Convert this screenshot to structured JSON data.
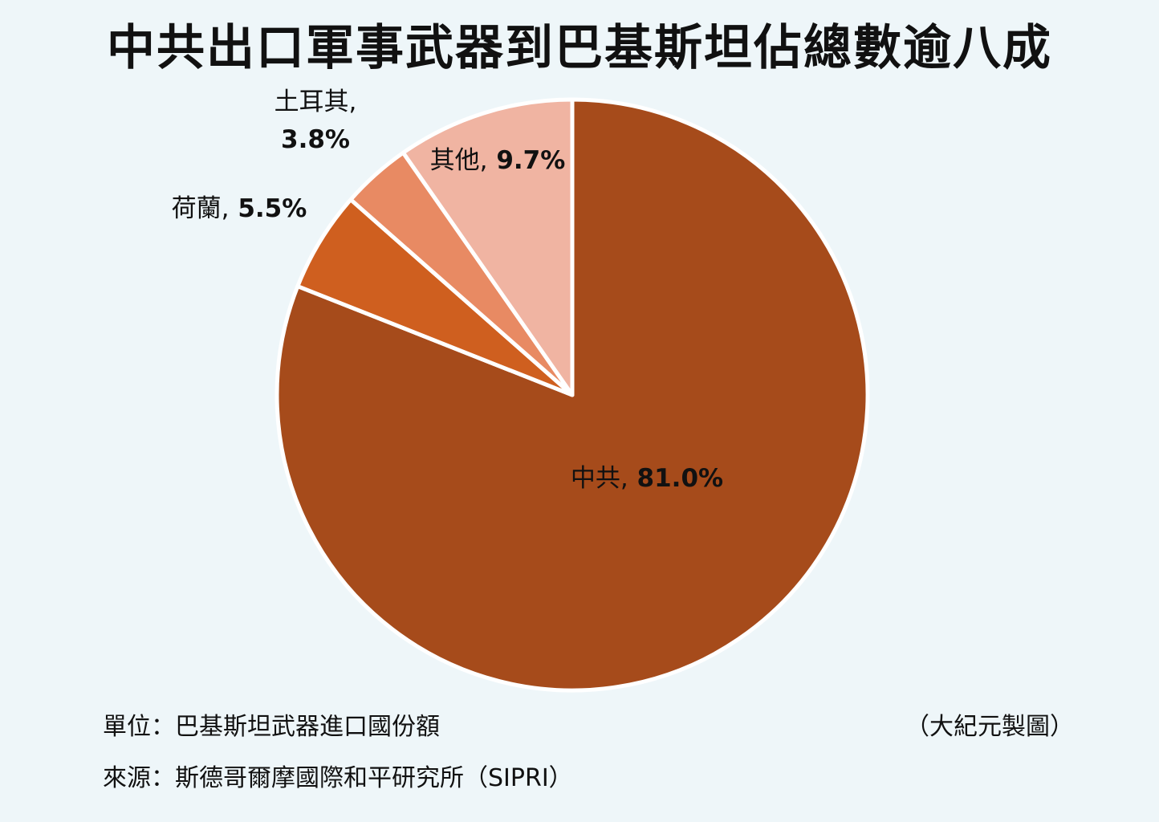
{
  "chart_data": {
    "type": "pie",
    "title": "中共出口軍事武器到巴基斯坦佔總數逾八成",
    "slices": [
      {
        "label": "中共",
        "value": 81.0,
        "value_text": "81.0%",
        "color": "#a64b1b"
      },
      {
        "label": "荷蘭",
        "value": 5.5,
        "value_text": "5.5%",
        "color": "#cf5f1f"
      },
      {
        "label": "土耳其",
        "value": 3.8,
        "value_text": "3.8%",
        "color": "#e88a63"
      },
      {
        "label": "其他",
        "value": 9.7,
        "value_text": "9.7%",
        "color": "#f0b4a2"
      }
    ],
    "slice_order": "clockwise from 12 o'clock",
    "legend": "none"
  },
  "footer": {
    "unit": "單位：巴基斯坦武器進口國份額",
    "credit": "（大紀元製圖）",
    "source": "來源：斯德哥爾摩國際和平研究所（SIPRI）"
  }
}
